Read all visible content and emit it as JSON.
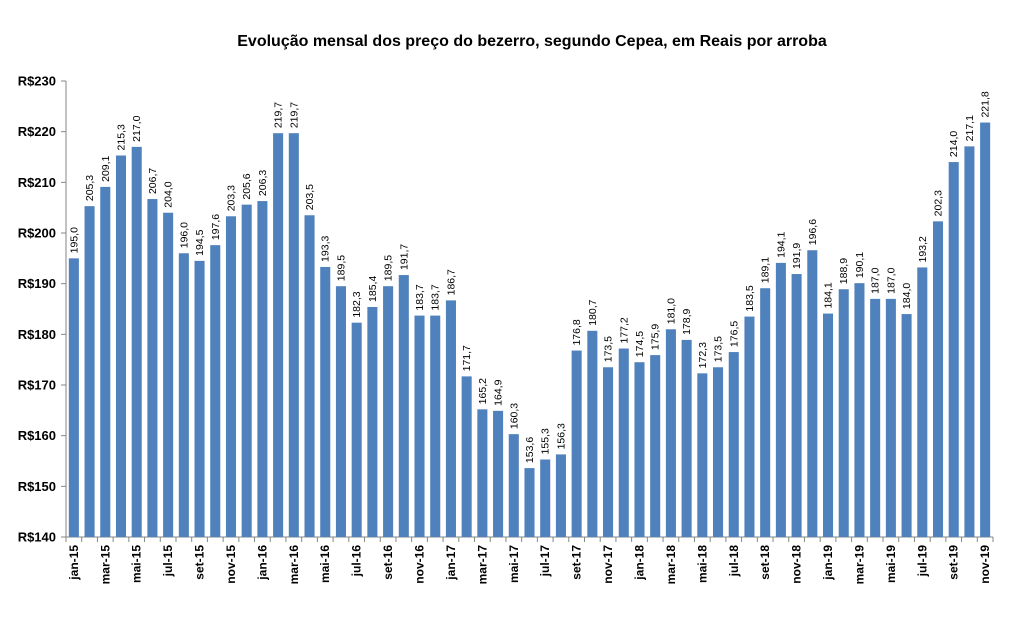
{
  "chart_data": {
    "type": "bar",
    "title": "Evolução mensal dos preço do bezerro, segundo Cepea, em Reais por arroba",
    "xlabel": "",
    "ylabel": "",
    "ylim": [
      140,
      230
    ],
    "ytick_step": 10,
    "ytick_prefix": "R$",
    "grid": false,
    "legend": "none",
    "bar_color": "#4f81bd",
    "categories": [
      "jan-15",
      "fev-15",
      "mar-15",
      "abr-15",
      "mai-15",
      "jun-15",
      "jul-15",
      "ago-15",
      "set-15",
      "out-15",
      "nov-15",
      "dez-15",
      "jan-16",
      "fev-16",
      "mar-16",
      "abr-16",
      "mai-16",
      "jun-16",
      "jul-16",
      "ago-16",
      "set-16",
      "out-16",
      "nov-16",
      "dez-16",
      "jan-17",
      "fev-17",
      "mar-17",
      "abr-17",
      "mai-17",
      "jun-17",
      "jul-17",
      "ago-17",
      "set-17",
      "out-17",
      "nov-17",
      "dez-17",
      "jan-18",
      "fev-18",
      "mar-18",
      "abr-18",
      "mai-18",
      "jun-18",
      "jul-18",
      "ago-18",
      "set-18",
      "out-18",
      "nov-18",
      "dez-18",
      "jan-19",
      "fev-19",
      "mar-19",
      "abr-19",
      "mai-19",
      "jun-19",
      "jul-19",
      "ago-19",
      "set-19",
      "out-19",
      "nov-19"
    ],
    "tick_labels_shown": [
      "jan-15",
      "mar-15",
      "mai-15",
      "jul-15",
      "set-15",
      "nov-15",
      "jan-16",
      "mar-16",
      "mai-16",
      "jul-16",
      "set-16",
      "nov-16",
      "jan-17",
      "mar-17",
      "mai-17",
      "jul-17",
      "set-17",
      "nov-17",
      "jan-18",
      "mar-18",
      "mai-18",
      "jul-18",
      "set-18",
      "nov-18",
      "jan-19",
      "mar-19",
      "mai-19",
      "jul-19",
      "set-19",
      "nov-19"
    ],
    "values": [
      195.0,
      205.3,
      209.1,
      215.3,
      217.0,
      206.7,
      204.0,
      196.0,
      194.5,
      197.6,
      203.3,
      205.6,
      206.3,
      219.7,
      219.7,
      203.5,
      193.3,
      189.5,
      182.3,
      185.4,
      189.5,
      191.7,
      183.7,
      183.7,
      186.7,
      171.7,
      165.2,
      164.9,
      160.3,
      153.6,
      155.3,
      156.3,
      176.8,
      180.7,
      173.5,
      177.2,
      174.5,
      175.9,
      181.0,
      178.9,
      172.3,
      173.5,
      176.5,
      183.5,
      189.1,
      194.1,
      191.9,
      196.6,
      184.1,
      188.9,
      190.1,
      187.0,
      187.0,
      184.0,
      193.2,
      202.3,
      214.0,
      217.1,
      221.8
    ],
    "data_labels": [
      "195,0",
      "205,3",
      "209,1",
      "215,3",
      "217,0",
      "206,7",
      "204,0",
      "196,0",
      "194,5",
      "197,6",
      "203,3",
      "205,6",
      "206,3",
      "219,7",
      "219,7",
      "203,5",
      "193,3",
      "189,5",
      "182,3",
      "185,4",
      "189,5",
      "191,7",
      "183,7",
      "183,7",
      "186,7",
      "171,7",
      "165,2",
      "164,9",
      "160,3",
      "153,6",
      "155,3",
      "156,3",
      "176,8",
      "180,7",
      "173,5",
      "177,2",
      "174,5",
      "175,9",
      "181,0",
      "178,9",
      "172,3",
      "173,5",
      "176,5",
      "183,5",
      "189,1",
      "194,1",
      "191,9",
      "196,6",
      "184,1",
      "188,9",
      "190,1",
      "187,0",
      "187,0",
      "184,0",
      "193,2",
      "202,3",
      "214,0",
      "217,1",
      "221,8"
    ]
  }
}
